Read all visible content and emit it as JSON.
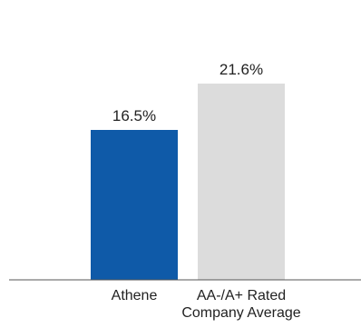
{
  "chart_data": {
    "type": "bar",
    "categories": [
      "Athene",
      "AA-/A+ Rated\nCompany Average"
    ],
    "values": [
      16.5,
      21.6
    ],
    "value_labels": [
      "16.5%",
      "21.6%"
    ],
    "colors": [
      "#0f5aa8",
      "#dcdcdc"
    ],
    "title": "",
    "xlabel": "",
    "ylabel": "",
    "ylim": [
      0,
      25
    ],
    "grid": false,
    "legend": "none"
  }
}
